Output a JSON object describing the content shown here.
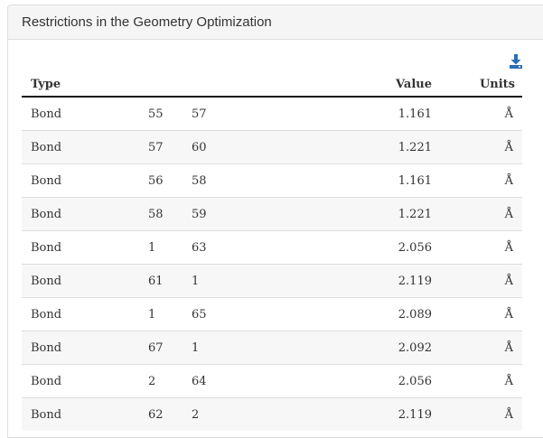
{
  "panel": {
    "title": "Restrictions in the Geometry Optimization"
  },
  "toolbar": {
    "download_icon": "download-icon"
  },
  "colors": {
    "icon": "#2a6fb5",
    "heading_bg": "#f5f5f5",
    "stripe": "#f7f7f7"
  },
  "table": {
    "headers": {
      "type": "Type",
      "value": "Value",
      "units": "Units"
    },
    "rows": [
      {
        "type": "Bond",
        "atom1": "55",
        "atom2": "57",
        "value": "1.161",
        "units": "Å"
      },
      {
        "type": "Bond",
        "atom1": "57",
        "atom2": "60",
        "value": "1.221",
        "units": "Å"
      },
      {
        "type": "Bond",
        "atom1": "56",
        "atom2": "58",
        "value": "1.161",
        "units": "Å"
      },
      {
        "type": "Bond",
        "atom1": "58",
        "atom2": "59",
        "value": "1.221",
        "units": "Å"
      },
      {
        "type": "Bond",
        "atom1": "1",
        "atom2": "63",
        "value": "2.056",
        "units": "Å"
      },
      {
        "type": "Bond",
        "atom1": "61",
        "atom2": "1",
        "value": "2.119",
        "units": "Å"
      },
      {
        "type": "Bond",
        "atom1": "1",
        "atom2": "65",
        "value": "2.089",
        "units": "Å"
      },
      {
        "type": "Bond",
        "atom1": "67",
        "atom2": "1",
        "value": "2.092",
        "units": "Å"
      },
      {
        "type": "Bond",
        "atom1": "2",
        "atom2": "64",
        "value": "2.056",
        "units": "Å"
      },
      {
        "type": "Bond",
        "atom1": "62",
        "atom2": "2",
        "value": "2.119",
        "units": "Å"
      }
    ]
  }
}
